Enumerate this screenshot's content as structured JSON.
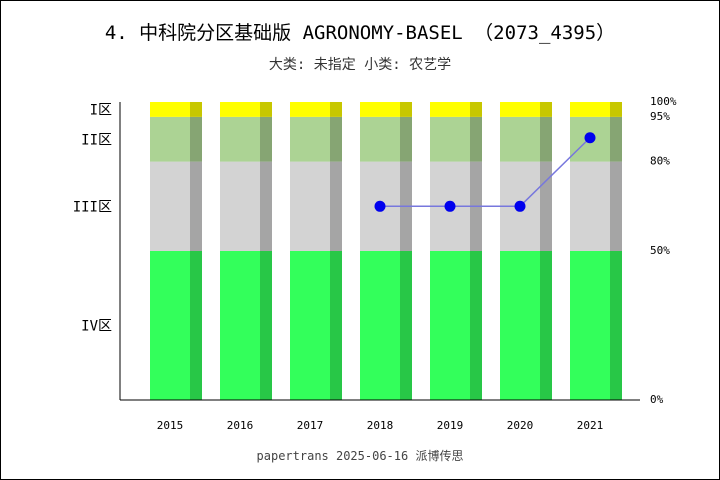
{
  "chart_data": {
    "type": "bar",
    "title": "4. 中科院分区基础版 AGRONOMY-BASEL （2073_4395）",
    "subtitle": "大类: 未指定 小类: 农艺学",
    "footer": "papertrans 2025-06-16 派博传思",
    "categories": [
      "2015",
      "2016",
      "2017",
      "2018",
      "2019",
      "2020",
      "2021"
    ],
    "bands": [
      {
        "label": "IV区",
        "from": 0,
        "to": 50,
        "color": "#33ff5b"
      },
      {
        "label": "III区",
        "from": 50,
        "to": 80,
        "color": "#d3d3d3"
      },
      {
        "label": "II区",
        "from": 80,
        "to": 95,
        "color": "#acd394"
      },
      {
        "label": "I区",
        "from": 95,
        "to": 100,
        "color": "#ffff00"
      }
    ],
    "right_ticks": [
      {
        "value": 0,
        "label": "0%"
      },
      {
        "value": 50,
        "label": "50%"
      },
      {
        "value": 80,
        "label": "80%"
      },
      {
        "value": 95,
        "label": "95%"
      },
      {
        "value": 100,
        "label": "100%"
      }
    ],
    "series": [
      {
        "values": [
          null,
          null,
          null,
          65,
          65,
          65,
          88
        ],
        "color": "#0000ee"
      }
    ],
    "ylim": [
      0,
      100
    ]
  }
}
